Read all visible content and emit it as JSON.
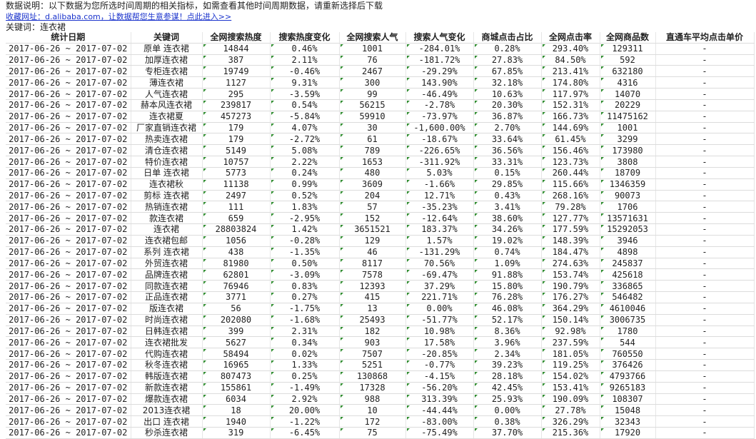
{
  "notice": "数据说明：以下数据为您所选时间周期的相关指标，如需查看其他时间周期数据，请重新选择后下载",
  "link": "收藏网址：d.alibaba.com，让数据帮您生意参谋！点此进入>>",
  "keyword_label": "关键词：连衣裙",
  "columns": [
    "统计日期",
    "关键词",
    "全网搜索热度",
    "搜索热度变化",
    "全网搜索人气",
    "搜索人气变化",
    "商城点击占比",
    "全网点击率",
    "全网商品数",
    "直通车平均点击单价"
  ],
  "indicator_color": "#2e8b2e",
  "rows": [
    [
      "2017-06-26 ~ 2017-07-02",
      "原单 连衣裙",
      "14844",
      "0.46%",
      "1001",
      "-284.01%",
      "0.28%",
      "293.40%",
      "129311",
      "-"
    ],
    [
      "2017-06-26 ~ 2017-07-02",
      "加厚连衣裙",
      "387",
      "2.11%",
      "76",
      "-181.72%",
      "27.83%",
      "84.50%",
      "592",
      "-"
    ],
    [
      "2017-06-26 ~ 2017-07-02",
      "专柜连衣裙",
      "19749",
      "-0.46%",
      "2467",
      "-29.29%",
      "67.85%",
      "213.41%",
      "632180",
      "-"
    ],
    [
      "2017-06-26 ~ 2017-07-02",
      "薄连衣裙",
      "1127",
      "9.31%",
      "300",
      "143.90%",
      "32.18%",
      "174.80%",
      "4316",
      "-"
    ],
    [
      "2017-06-26 ~ 2017-07-02",
      "人气连衣裙",
      "295",
      "-3.59%",
      "99",
      "-46.49%",
      "10.63%",
      "117.97%",
      "14070",
      "-"
    ],
    [
      "2017-06-26 ~ 2017-07-02",
      "赫本风连衣裙",
      "239817",
      "0.54%",
      "56215",
      "-2.78%",
      "20.30%",
      "152.31%",
      "20229",
      "-"
    ],
    [
      "2017-06-26 ~ 2017-07-02",
      "连衣裙夏",
      "457273",
      "-5.84%",
      "59910",
      "-73.97%",
      "36.87%",
      "166.73%",
      "11475162",
      "-"
    ],
    [
      "2017-06-26 ~ 2017-07-02",
      "厂家直销连衣裙",
      "179",
      "4.07%",
      "30",
      "-1,600.00%",
      "2.70%",
      "144.69%",
      "1001",
      "-"
    ],
    [
      "2017-06-26 ~ 2017-07-02",
      "热卖连衣裙",
      "179",
      "-2.72%",
      "61",
      "-18.67%",
      "33.64%",
      "61.45%",
      "3299",
      "-"
    ],
    [
      "2017-06-26 ~ 2017-07-02",
      "清仓连衣裙",
      "5149",
      "5.08%",
      "789",
      "-226.65%",
      "36.56%",
      "156.46%",
      "173980",
      "-"
    ],
    [
      "2017-06-26 ~ 2017-07-02",
      "特价连衣裙",
      "10757",
      "2.22%",
      "1653",
      "-311.92%",
      "33.31%",
      "123.73%",
      "3808",
      "-"
    ],
    [
      "2017-06-26 ~ 2017-07-02",
      "日单 连衣裙",
      "5773",
      "0.24%",
      "480",
      "5.03%",
      "0.15%",
      "260.44%",
      "18709",
      "-"
    ],
    [
      "2017-06-26 ~ 2017-07-02",
      "连衣裙秋",
      "11138",
      "0.99%",
      "3609",
      "-1.66%",
      "29.85%",
      "115.66%",
      "1346359",
      "-"
    ],
    [
      "2017-06-26 ~ 2017-07-02",
      "剪标 连衣裙",
      "2497",
      "0.52%",
      "204",
      "12.71%",
      "0.43%",
      "268.16%",
      "90073",
      "-"
    ],
    [
      "2017-06-26 ~ 2017-07-02",
      "热销连衣裙",
      "111",
      "1.83%",
      "57",
      "-35.23%",
      "3.41%",
      "79.28%",
      "1706",
      "-"
    ],
    [
      "2017-06-26 ~ 2017-07-02",
      "款连衣裙",
      "659",
      "-2.95%",
      "152",
      "-12.64%",
      "38.60%",
      "127.77%",
      "13571631",
      "-"
    ],
    [
      "2017-06-26 ~ 2017-07-02",
      "连衣裙",
      "28803824",
      "1.42%",
      "3651521",
      "183.37%",
      "34.26%",
      "177.59%",
      "15292053",
      "-"
    ],
    [
      "2017-06-26 ~ 2017-07-02",
      "连衣裙包邮",
      "1056",
      "-0.28%",
      "129",
      "1.57%",
      "19.02%",
      "148.39%",
      "3946",
      "-"
    ],
    [
      "2017-06-26 ~ 2017-07-02",
      "系列 连衣裙",
      "438",
      "-1.35%",
      "46",
      "-131.29%",
      "0.74%",
      "184.47%",
      "4898",
      "-"
    ],
    [
      "2017-06-26 ~ 2017-07-02",
      "外贸连衣裙",
      "81980",
      "0.50%",
      "8117",
      "70.56%",
      "1.09%",
      "274.63%",
      "245837",
      "-"
    ],
    [
      "2017-06-26 ~ 2017-07-02",
      "品牌连衣裙",
      "62801",
      "-3.09%",
      "7578",
      "-69.47%",
      "91.88%",
      "153.74%",
      "425618",
      "-"
    ],
    [
      "2017-06-26 ~ 2017-07-02",
      "同款连衣裙",
      "76946",
      "0.83%",
      "12393",
      "37.29%",
      "15.80%",
      "190.79%",
      "336865",
      "-"
    ],
    [
      "2017-06-26 ~ 2017-07-02",
      "正品连衣裙",
      "3771",
      "0.27%",
      "415",
      "221.71%",
      "76.28%",
      "176.27%",
      "546482",
      "-"
    ],
    [
      "2017-06-26 ~ 2017-07-02",
      "版连衣裙",
      "56",
      "-1.75%",
      "13",
      "0.00%",
      "46.08%",
      "364.29%",
      "4610046",
      "-"
    ],
    [
      "2017-06-26 ~ 2017-07-02",
      "时尚连衣裙",
      "202080",
      "-1.68%",
      "25493",
      "-51.77%",
      "52.17%",
      "150.14%",
      "3006735",
      "-"
    ],
    [
      "2017-06-26 ~ 2017-07-02",
      "日韩连衣裙",
      "399",
      "2.31%",
      "182",
      "10.98%",
      "8.36%",
      "92.98%",
      "1780",
      "-"
    ],
    [
      "2017-06-26 ~ 2017-07-02",
      "连衣裙批发",
      "5627",
      "0.34%",
      "903",
      "17.58%",
      "3.96%",
      "237.59%",
      "544",
      "-"
    ],
    [
      "2017-06-26 ~ 2017-07-02",
      "代购连衣裙",
      "58494",
      "0.02%",
      "7507",
      "-20.85%",
      "2.34%",
      "181.05%",
      "760550",
      "-"
    ],
    [
      "2017-06-26 ~ 2017-07-02",
      "秋冬连衣裙",
      "16965",
      "1.33%",
      "5251",
      "-0.77%",
      "39.23%",
      "119.25%",
      "376426",
      "-"
    ],
    [
      "2017-06-26 ~ 2017-07-02",
      "韩版连衣裙",
      "807473",
      "0.25%",
      "130868",
      "-4.15%",
      "28.18%",
      "154.02%",
      "4793766",
      "-"
    ],
    [
      "2017-06-26 ~ 2017-07-02",
      "新款连衣裙",
      "155861",
      "-1.49%",
      "17328",
      "-56.20%",
      "42.45%",
      "153.41%",
      "9265183",
      "-"
    ],
    [
      "2017-06-26 ~ 2017-07-02",
      "爆款连衣裙",
      "6034",
      "2.92%",
      "988",
      "313.39%",
      "25.93%",
      "190.09%",
      "108307",
      "-"
    ],
    [
      "2017-06-26 ~ 2017-07-02",
      "2013连衣裙",
      "18",
      "20.00%",
      "10",
      "-44.44%",
      "0.00%",
      "27.78%",
      "15048",
      "-"
    ],
    [
      "2017-06-26 ~ 2017-07-02",
      "出口 连衣裙",
      "1940",
      "-1.22%",
      "172",
      "-83.00%",
      "0.38%",
      "326.29%",
      "32343",
      "-"
    ],
    [
      "2017-06-26 ~ 2017-07-02",
      "秒杀连衣裙",
      "319",
      "-6.45%",
      "75",
      "-75.49%",
      "37.70%",
      "215.36%",
      "17920",
      "-"
    ]
  ]
}
